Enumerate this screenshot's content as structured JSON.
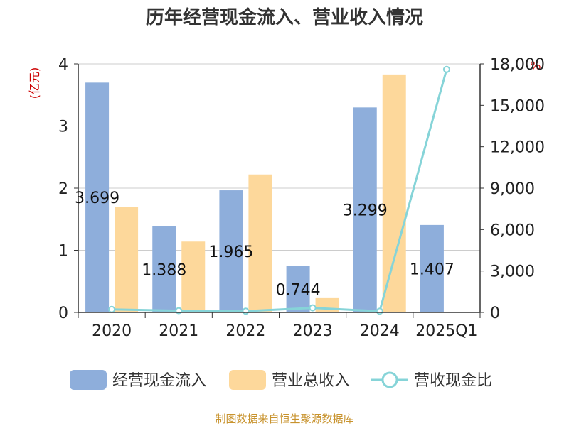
{
  "chart_data": {
    "type": "bar",
    "title": "历年经营现金流入、营业收入情况",
    "categories": [
      "2020",
      "2021",
      "2022",
      "2023",
      "2024",
      "2025Q1"
    ],
    "series": [
      {
        "name": "经营现金流入",
        "type": "bar",
        "axis": "left",
        "color": "#8eaedb",
        "values": [
          3.699,
          1.388,
          1.965,
          0.744,
          3.299,
          1.407
        ],
        "data_labels": [
          "3.699",
          "1.388",
          "1.965",
          "0.744",
          "3.299",
          "1.407"
        ]
      },
      {
        "name": "营业总收入",
        "type": "bar",
        "axis": "left",
        "color": "#fdd89b",
        "values": [
          1.7,
          1.14,
          2.22,
          0.23,
          3.83,
          0.01
        ]
      },
      {
        "name": "营收现金比",
        "type": "line",
        "axis": "right",
        "color": "#86d4d8",
        "values": [
          220,
          125,
          90,
          330,
          85,
          17600
        ]
      }
    ],
    "left_axis": {
      "unit": "(亿元)",
      "ylim": [
        0,
        4
      ],
      "ticks": [
        "0",
        "1",
        "2",
        "3",
        "4"
      ]
    },
    "right_axis": {
      "unit": "%",
      "ylim": [
        0,
        18000
      ],
      "ticks": [
        "0",
        "3,000",
        "6,000",
        "9,000",
        "12,000",
        "15,000",
        "18,000"
      ]
    },
    "grid": true,
    "legend_position": "bottom"
  },
  "source": "制图数据来自恒生聚源数据库"
}
